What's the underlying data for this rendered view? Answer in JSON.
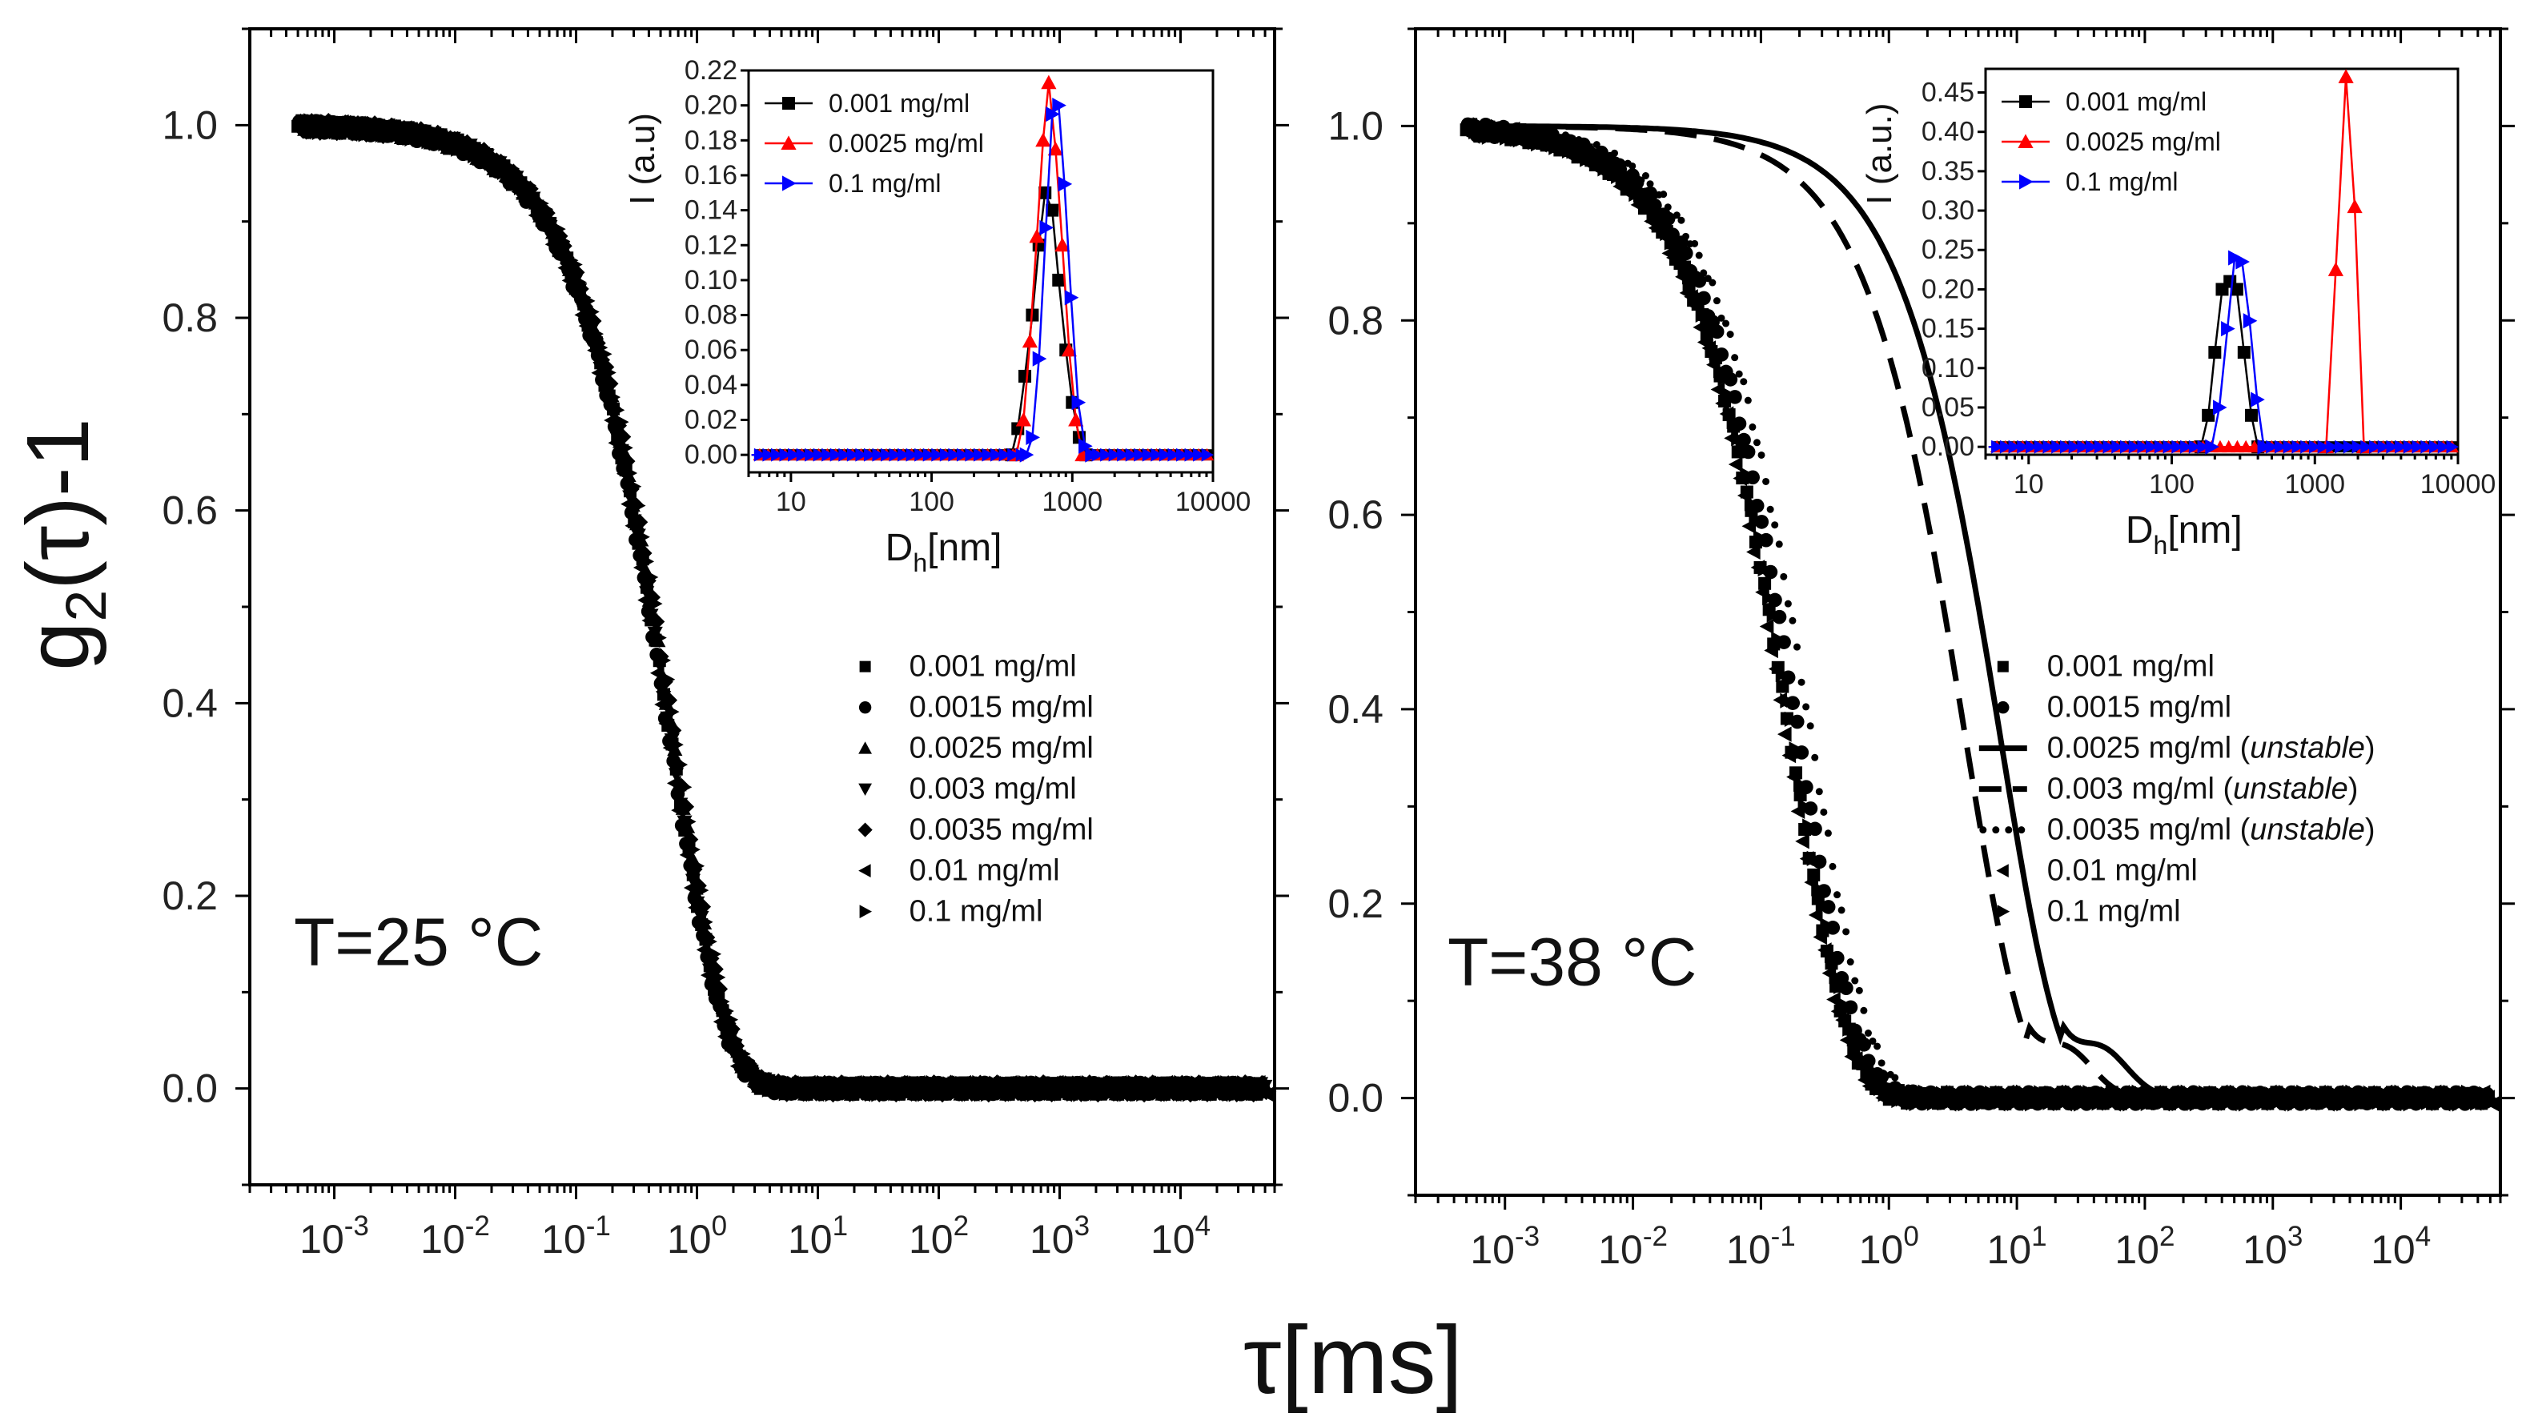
{
  "figure": {
    "ylabel": "g2(τ)-1",
    "xlabel": "τ[ms]"
  },
  "chart_data": [
    {
      "type": "scatter",
      "panel": "left",
      "annotation": "T=25 °C",
      "x_scale": "log",
      "xlim": [
        0.0002,
        60000
      ],
      "ylim": [
        -0.1,
        1.1
      ],
      "x_ticks": [
        "10-3",
        "10-2",
        "10-1",
        "100",
        "101",
        "102",
        "103",
        "104"
      ],
      "y_ticks": [
        "0.0",
        "0.2",
        "0.4",
        "0.6",
        "0.8",
        "1.0"
      ],
      "legend_placement": "center-right",
      "series": [
        {
          "name": "0.001 mg/ml",
          "marker": "square",
          "tau_c": 0.6
        },
        {
          "name": "0.0015 mg/ml",
          "marker": "circle",
          "tau_c": 0.58
        },
        {
          "name": "0.0025 mg/ml",
          "marker": "triangle-up",
          "tau_c": 0.62
        },
        {
          "name": "0.003 mg/ml",
          "marker": "triangle-down",
          "tau_c": 0.6
        },
        {
          "name": "0.0035 mg/ml",
          "marker": "diamond",
          "tau_c": 0.64
        },
        {
          "name": "0.01 mg/ml",
          "marker": "triangle-left",
          "tau_c": 0.57
        },
        {
          "name": "0.1 mg/ml",
          "marker": "triangle-right",
          "tau_c": 0.66
        }
      ],
      "inset": {
        "type": "line",
        "xlabel": "Dh[nm]",
        "ylabel": "I (a.u)",
        "x_scale": "log",
        "xlim": [
          5,
          10000
        ],
        "ylim": [
          -0.01,
          0.22
        ],
        "x_ticks": [
          "10",
          "100",
          "1000",
          "10000"
        ],
        "y_ticks": [
          "0.00",
          "0.02",
          "0.04",
          "0.06",
          "0.08",
          "0.10",
          "0.12",
          "0.14",
          "0.16",
          "0.18",
          "0.20",
          "0.22"
        ],
        "series": [
          {
            "name": "0.001 mg/ml",
            "color": "#000000",
            "marker": "square",
            "points": [
              [
                370,
                0.0
              ],
              [
                410,
                0.015
              ],
              [
                460,
                0.045
              ],
              [
                520,
                0.08
              ],
              [
                580,
                0.12
              ],
              [
                640,
                0.15
              ],
              [
                720,
                0.14
              ],
              [
                800,
                0.1
              ],
              [
                900,
                0.06
              ],
              [
                1000,
                0.03
              ],
              [
                1120,
                0.01
              ],
              [
                1250,
                0.0
              ]
            ]
          },
          {
            "name": "0.0025 mg/ml",
            "color": "#ff0000",
            "marker": "triangle-up",
            "points": [
              [
                400,
                0.0
              ],
              [
                450,
                0.02
              ],
              [
                500,
                0.065
              ],
              [
                560,
                0.125
              ],
              [
                620,
                0.18
              ],
              [
                680,
                0.213
              ],
              [
                760,
                0.175
              ],
              [
                850,
                0.12
              ],
              [
                950,
                0.06
              ],
              [
                1060,
                0.02
              ],
              [
                1180,
                0.0
              ]
            ]
          },
          {
            "name": "0.1 mg/ml",
            "color": "#0000ff",
            "marker": "triangle-right",
            "points": [
              [
                470,
                0.0
              ],
              [
                520,
                0.01
              ],
              [
                580,
                0.055
              ],
              [
                650,
                0.13
              ],
              [
                720,
                0.195
              ],
              [
                800,
                0.2
              ],
              [
                880,
                0.155
              ],
              [
                980,
                0.09
              ],
              [
                1100,
                0.03
              ],
              [
                1230,
                0.005
              ],
              [
                1370,
                0.0
              ]
            ]
          }
        ]
      }
    },
    {
      "type": "scatter",
      "panel": "right",
      "annotation": "T=38 °C",
      "x_scale": "log",
      "xlim": [
        0.0002,
        60000
      ],
      "ylim": [
        -0.1,
        1.1
      ],
      "x_ticks": [
        "10-3",
        "10-2",
        "10-1",
        "100",
        "101",
        "102",
        "103",
        "104"
      ],
      "y_ticks": [
        "0.0",
        "0.2",
        "0.4",
        "0.6",
        "0.8",
        "1.0"
      ],
      "legend_placement": "center-right",
      "series": [
        {
          "name": "0.001 mg/ml",
          "marker": "square",
          "tau_c": 0.17
        },
        {
          "name": "0.0015 mg/ml",
          "marker": "circle",
          "tau_c": 0.2
        },
        {
          "name": "0.0025 mg/ml",
          "note": "unstable",
          "style": "solid-line",
          "tau_c": 7.5
        },
        {
          "name": "0.003 mg/ml",
          "note": "unstable",
          "style": "dashed-line",
          "tau_c": 4.0
        },
        {
          "name": "0.0035 mg/ml",
          "note": "unstable",
          "style": "dotted",
          "tau_c": 0.25
        },
        {
          "name": "0.01 mg/ml",
          "marker": "triangle-left",
          "tau_c": 0.16
        },
        {
          "name": "0.1 mg/ml",
          "marker": "triangle-right",
          "tau_c": 0.18
        }
      ],
      "inset": {
        "type": "line",
        "xlabel": "Dh[nm]",
        "ylabel": "I (a.u.)",
        "x_scale": "log",
        "xlim": [
          5,
          10000
        ],
        "ylim": [
          -0.01,
          0.48
        ],
        "x_ticks": [
          "10",
          "100",
          "1000",
          "10000"
        ],
        "y_ticks": [
          "0.00",
          "0.05",
          "0.10",
          "0.15",
          "0.20",
          "0.25",
          "0.30",
          "0.35",
          "0.40",
          "0.45"
        ],
        "series": [
          {
            "name": "0.001 mg/ml",
            "color": "#000000",
            "marker": "square",
            "points": [
              [
                160,
                0.0
              ],
              [
                180,
                0.04
              ],
              [
                200,
                0.12
              ],
              [
                225,
                0.2
              ],
              [
                255,
                0.21
              ],
              [
                285,
                0.2
              ],
              [
                320,
                0.12
              ],
              [
                360,
                0.04
              ],
              [
                400,
                0.0
              ]
            ]
          },
          {
            "name": "0.0025 mg/ml",
            "color": "#ff0000",
            "marker": "triangle-up",
            "points": [
              [
                1200,
                0.0
              ],
              [
                1400,
                0.225
              ],
              [
                1650,
                0.47
              ],
              [
                1900,
                0.305
              ],
              [
                2200,
                0.0
              ]
            ]
          },
          {
            "name": "0.1 mg/ml",
            "color": "#0000ff",
            "marker": "triangle-right",
            "points": [
              [
                190,
                0.0
              ],
              [
                215,
                0.05
              ],
              [
                245,
                0.15
              ],
              [
                275,
                0.24
              ],
              [
                310,
                0.235
              ],
              [
                350,
                0.16
              ],
              [
                395,
                0.06
              ],
              [
                440,
                0.0
              ]
            ]
          }
        ]
      }
    }
  ]
}
